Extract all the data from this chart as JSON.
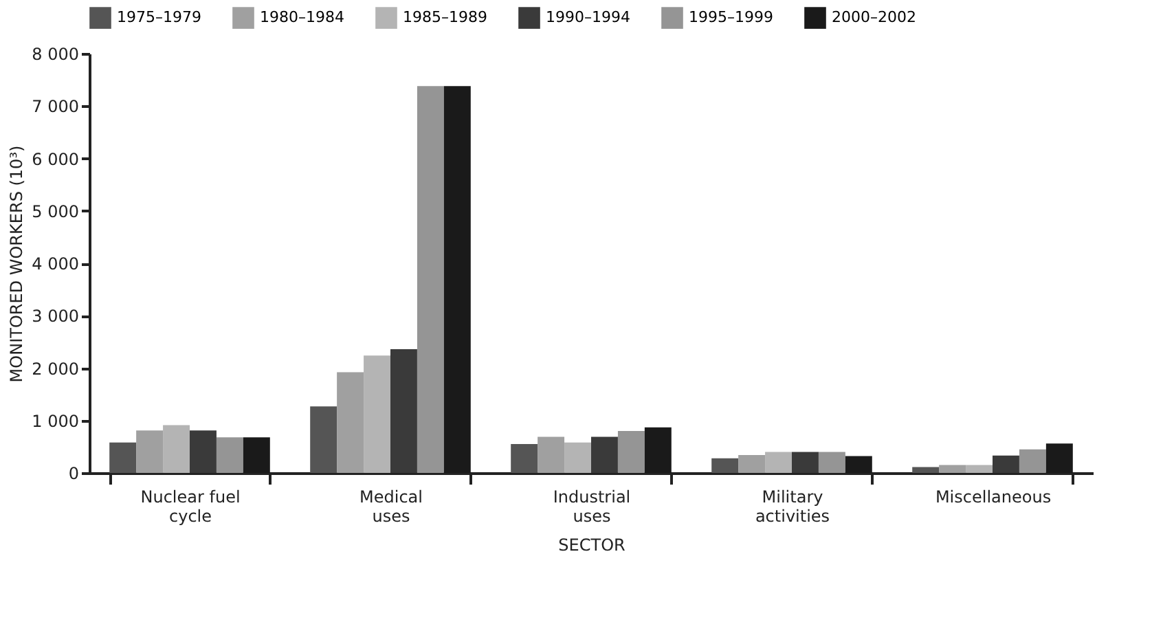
{
  "chart_data": {
    "type": "bar",
    "xlabel": "SECTOR",
    "ylabel": "MONITORED WORKERS (10³)",
    "categories": [
      "Nuclear fuel\ncycle",
      "Medical\nuses",
      "Industrial\nuses",
      "Military\nactivities",
      "Miscellaneous"
    ],
    "series": [
      {
        "name": "1975–1979",
        "color": "#555555",
        "values": [
          580,
          1270,
          550,
          280,
          110
        ]
      },
      {
        "name": "1980–1984",
        "color": "#a0a0a0",
        "values": [
          810,
          1920,
          690,
          340,
          150
        ]
      },
      {
        "name": "1985–1989",
        "color": "#b4b4b4",
        "values": [
          910,
          2240,
          580,
          400,
          150
        ]
      },
      {
        "name": "1990–1994",
        "color": "#3a3a3a",
        "values": [
          810,
          2360,
          690,
          400,
          330
        ]
      },
      {
        "name": "1995–1999",
        "color": "#959595",
        "values": [
          680,
          7380,
          800,
          400,
          450
        ]
      },
      {
        "name": "2000–2002",
        "color": "#1a1a1a",
        "values": [
          680,
          7380,
          870,
          320,
          560
        ]
      }
    ],
    "ylim": [
      0,
      8000
    ],
    "yticks": [
      0,
      {
        "value": 1000,
        "label": "1 000"
      },
      {
        "value": 2000,
        "label": "2 000"
      },
      {
        "value": 3000,
        "label": "3 000"
      },
      {
        "value": 4000,
        "label": "4 000"
      },
      {
        "value": 5000,
        "label": "5 000"
      },
      {
        "value": 6000,
        "label": "6 000"
      },
      {
        "value": 7000,
        "label": "7 000"
      },
      {
        "value": 8000,
        "label": "8 000"
      }
    ],
    "grid": false,
    "legend": "top"
  }
}
